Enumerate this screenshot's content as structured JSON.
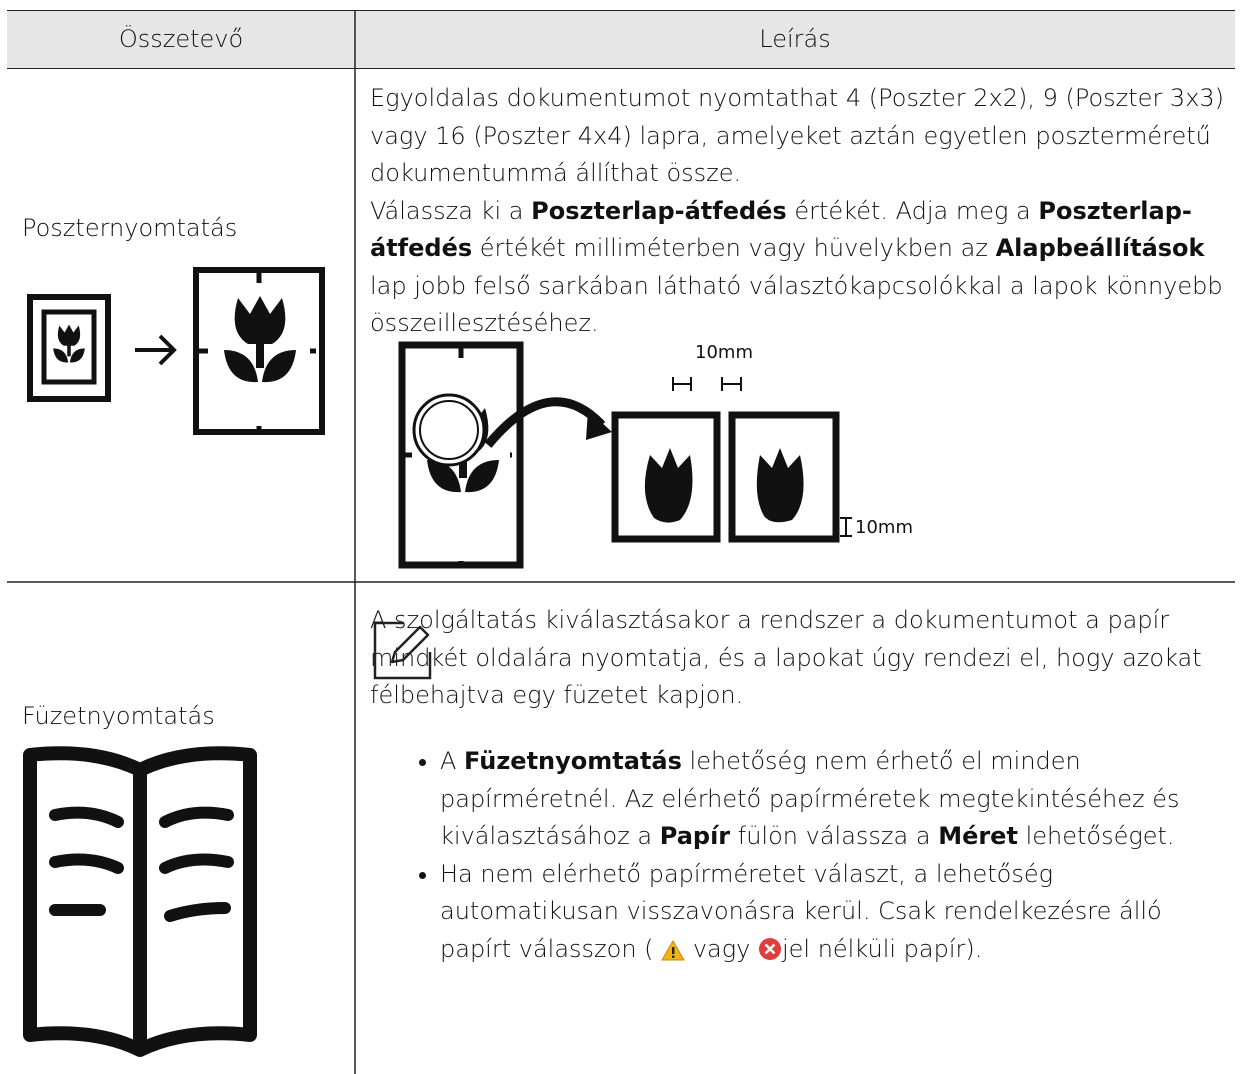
{
  "table": {
    "header": [
      "Összetevő",
      "Leírás"
    ],
    "rows": [
      {
        "name": "Poszternyomtatás",
        "paragraphs": [
          [
            "Egyoldalas dokumentumot nyomtathat 4 (Poszter 2x2), 9 (Poszter 3x3) vagy 16 (Poszter 4x4) lapra, amelyeket aztán egyetlen poszterméretű dokumentummá állíthat össze."
          ],
          [
            "Válassza ki a ",
            "Poszterlap-átfedés",
            " értékét. Adja meg a ",
            "Poszterlap-átfedés",
            " értékét milliméterben vagy hüvelykben az ",
            "Alapbeállítások",
            " lap jobb felső sarkában látható választókapcsolókkal a lapok könnyebb összeillesztéséhez."
          ]
        ],
        "figure_labels": [
          "10mm",
          "10mm"
        ]
      },
      {
        "name": "Füzetnyomtatás",
        "paragraphs": [
          [
            "A szolgáltatás kiválasztásakor a rendszer a dokumentumot a papír mindkét oldalára nyomtatja, és a lapokat úgy rendezi el, hogy azokat félbehajtva egy füzetet kapjon."
          ]
        ],
        "bullets": [
          [
            "A ",
            "Füzetnyomtatás",
            " lehetőség nem érhető el minden papírméretnél. Az elérhető papírméretek megtekintéséhez és kiválasztásához a ",
            "Papír",
            " fülön válassza a ",
            "Méret",
            " lehetőséget."
          ],
          [
            "Ha nem elérhető papírméretet választ, a lehetőség automatikusan visszavonásra kerül. Csak rendelkezésre álló papírt válasszon (",
            "vagy",
            "jel nélküli papír)."
          ]
        ]
      }
    ]
  }
}
